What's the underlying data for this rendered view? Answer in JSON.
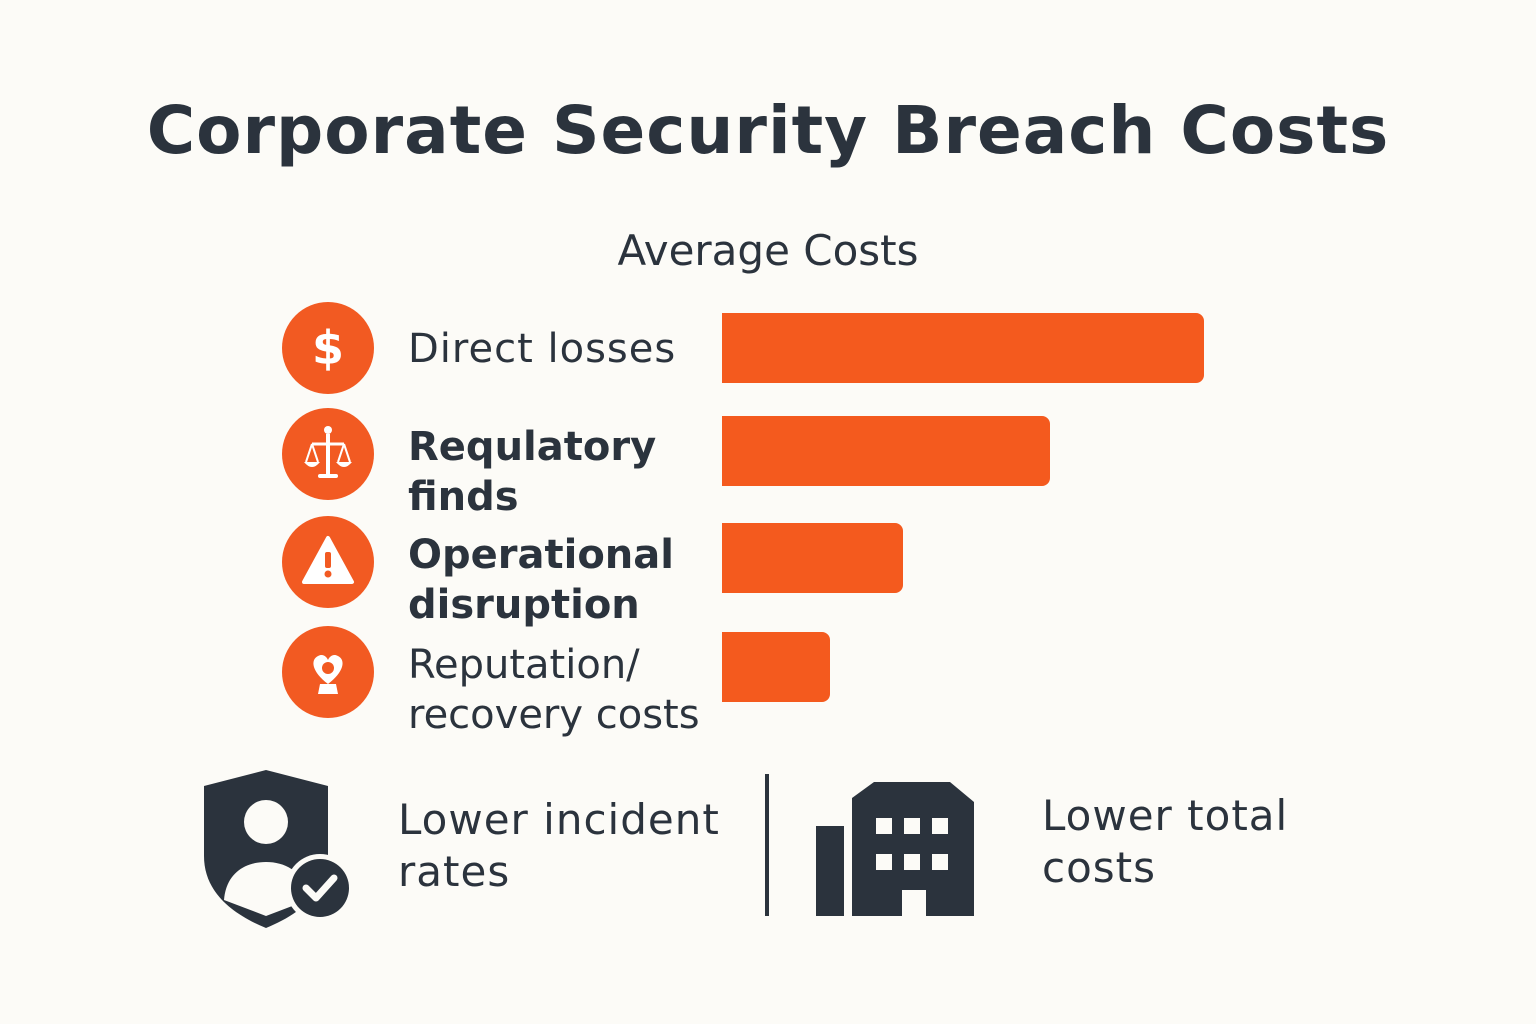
{
  "title": "Corporate Security Breach Costs",
  "subtitle": "Average Costs",
  "colors": {
    "bar": "#f45a1e",
    "icon_bg": "#f25a22",
    "dark": "#2b333d",
    "background": "#fcfbf7"
  },
  "chart_data": {
    "type": "bar",
    "orientation": "horizontal",
    "title": "Corporate Security Breach Costs",
    "subtitle": "Average Costs",
    "categories": [
      "Direct losses",
      "Requlatory\nfinds",
      "Operational\ndisruption",
      "Reputation/\nrecovery costs"
    ],
    "values": [
      100,
      68,
      37.5,
      22.5
    ],
    "icons": [
      "dollar-icon",
      "scales-icon",
      "warning-icon",
      "heart-person-icon"
    ],
    "xlim": [
      0,
      100
    ],
    "grid": false,
    "legend": "none"
  },
  "footer": {
    "left_label": "Lower incident\nrates",
    "left_icon": "shield-user-check-icon",
    "right_label": "Lower total\ncosts",
    "right_icon": "building-icon"
  }
}
